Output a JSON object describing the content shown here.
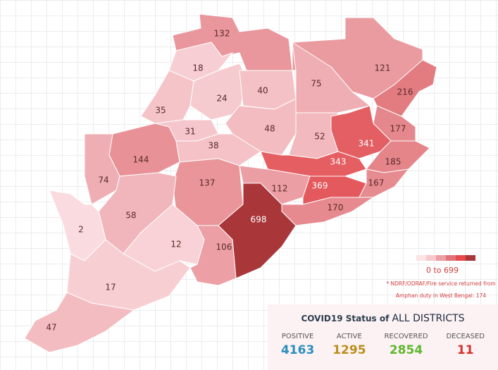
{
  "map": {
    "districts": [
      {
        "value": 132
      },
      {
        "value": 121
      },
      {
        "value": 18
      },
      {
        "value": 24
      },
      {
        "value": 40
      },
      {
        "value": 75
      },
      {
        "value": 216
      },
      {
        "value": 35
      },
      {
        "value": 31
      },
      {
        "value": 48
      },
      {
        "value": 52
      },
      {
        "value": 177
      },
      {
        "value": 341
      },
      {
        "value": 38
      },
      {
        "value": 144
      },
      {
        "value": 343
      },
      {
        "value": 185
      },
      {
        "value": 74
      },
      {
        "value": 137
      },
      {
        "value": 112
      },
      {
        "value": 369
      },
      {
        "value": 167
      },
      {
        "value": 170
      },
      {
        "value": 58
      },
      {
        "value": 698
      },
      {
        "value": 2
      },
      {
        "value": 12
      },
      {
        "value": 106
      },
      {
        "value": 17
      },
      {
        "value": 47
      }
    ],
    "legend": {
      "min": 0,
      "max": 699,
      "label": "0 to 699",
      "colors": [
        "#fbe3e6",
        "#f6c9ce",
        "#eb9ea3",
        "#e07378",
        "#e74a4d",
        "#a9373a"
      ]
    },
    "note": [
      "* NDRF/ODRAF/Fire service returned from",
      "Amphan duty in West Bengal: 174"
    ]
  },
  "status": {
    "title": "COVID19 Status of",
    "title_emph": "ALL DISTRICTS",
    "items": [
      {
        "label": "POSITIVE",
        "value": 4163,
        "color": "#2a8fbd"
      },
      {
        "label": "ACTIVE",
        "value": 1295,
        "color": "#b8901a"
      },
      {
        "label": "RECOVERED",
        "value": 2854,
        "color": "#5cb82e"
      },
      {
        "label": "DECEASED",
        "value": 11,
        "color": "#d9302c"
      }
    ]
  }
}
